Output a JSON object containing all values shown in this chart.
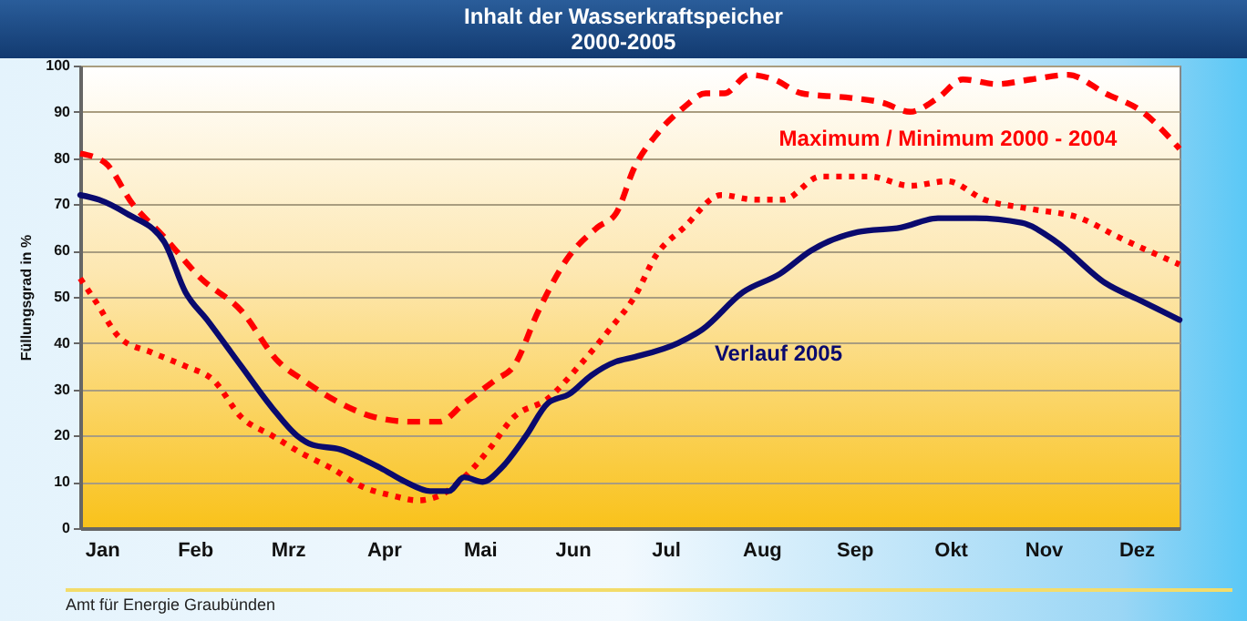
{
  "chart_data": {
    "type": "line",
    "title": "Inhalt der Wasserkraftspeicher",
    "subtitle": "2000-2005",
    "ylabel": "Füllungsgrad in %",
    "xlim": [
      "--01-08",
      "--12-29"
    ],
    "xticks": [
      {
        "value": "--01-15",
        "label": "Jan"
      },
      {
        "value": "--02-14",
        "label": "Feb"
      },
      {
        "value": "--03-16",
        "label": "Mrz"
      },
      {
        "value": "--04-16",
        "label": "Apr"
      },
      {
        "value": "--05-17",
        "label": "Mai"
      },
      {
        "value": "--06-16",
        "label": "Jun"
      },
      {
        "value": "--07-16",
        "label": "Jul"
      },
      {
        "value": "--08-16",
        "label": "Aug"
      },
      {
        "value": "--09-15",
        "label": "Sep"
      },
      {
        "value": "--10-16",
        "label": "Okt"
      },
      {
        "value": "--11-15",
        "label": "Nov"
      },
      {
        "value": "--12-15",
        "label": "Dez"
      }
    ],
    "ylim": [
      0,
      100
    ],
    "yticks": [
      0,
      10,
      20,
      30,
      40,
      50,
      60,
      70,
      80,
      90,
      100
    ],
    "grid": "y",
    "legend": false,
    "marker": "none",
    "series": [
      {
        "color": "#ff0000",
        "line_style": "dashed",
        "x": [
          "--01-08",
          "--01-16",
          "--01-25",
          "--02-04",
          "--02-16",
          "--03-01",
          "--03-13",
          "--03-21",
          "--04-02",
          "--04-13",
          "--04-25",
          "--05-04",
          "--05-12",
          "--05-22",
          "--05-28",
          "--06-05",
          "--06-14",
          "--06-24",
          "--06-30",
          "--07-06",
          "--07-13",
          "--07-22",
          "--07-29",
          "--08-04",
          "--08-12",
          "--08-20",
          "--08-29",
          "--09-14",
          "--09-24",
          "--10-03",
          "--10-12",
          "--10-20",
          "--10-31",
          "--11-11",
          "--11-23",
          "--12-05",
          "--12-17",
          "--12-29"
        ],
        "values": [
          81,
          79,
          70,
          63,
          54,
          47,
          36,
          32,
          27,
          24,
          23,
          23,
          27,
          32,
          35,
          47,
          58,
          65,
          68,
          78,
          85,
          91,
          94,
          94,
          98,
          97,
          94,
          93,
          92,
          90,
          93,
          97,
          96,
          97,
          98,
          94,
          90,
          82
        ]
      },
      {
        "color": "#ff0000",
        "line_style": "dotted",
        "x": [
          "--01-08",
          "--01-13",
          "--01-21",
          "--01-31",
          "--02-11",
          "--02-20",
          "--03-01",
          "--03-11",
          "--03-21",
          "--03-30",
          "--04-09",
          "--04-19",
          "--04-27",
          "--05-04",
          "--05-12",
          "--05-20",
          "--05-28",
          "--06-08",
          "--06-18",
          "--06-28",
          "--07-06",
          "--07-13",
          "--07-22",
          "--08-03",
          "--08-14",
          "--08-23",
          "--09-04",
          "--09-20",
          "--10-03",
          "--10-15",
          "--10-27",
          "--11-11",
          "--11-27",
          "--12-09",
          "--12-29"
        ],
        "values": [
          54,
          49,
          41,
          38,
          35,
          32,
          24,
          20,
          16,
          13,
          9,
          7,
          6,
          7,
          11,
          17,
          24,
          28,
          35,
          43,
          50,
          59,
          65,
          72,
          71,
          71,
          76,
          76,
          74,
          75,
          71,
          69,
          67,
          63,
          57
        ]
      },
      {
        "color": "#0a0a6e",
        "line_style": "solid",
        "x": [
          "--01-08",
          "--01-14",
          "--01-23",
          "--02-04",
          "--02-11",
          "--02-18",
          "--03-01",
          "--03-11",
          "--03-19",
          "--03-24",
          "--04-02",
          "--04-09",
          "--04-15",
          "--04-23",
          "--05-01",
          "--05-07",
          "--05-12",
          "--05-18",
          "--05-24",
          "--06-01",
          "--06-08",
          "--06-15",
          "--06-22",
          "--06-30",
          "--07-06",
          "--07-20",
          "--07-28",
          "--08-10",
          "--08-22",
          "--09-01",
          "--09-16",
          "--09-30",
          "--10-12",
          "--10-24",
          "--11-08",
          "--11-19",
          "--12-05",
          "--12-17",
          "--12-29"
        ],
        "values": [
          72,
          71,
          68,
          62,
          51,
          45,
          35,
          26,
          20,
          18,
          17,
          15,
          13,
          10,
          8,
          8,
          11,
          10,
          13,
          20,
          27,
          29,
          33,
          36,
          37,
          40,
          43,
          51,
          55,
          60,
          64,
          65,
          67,
          67,
          66,
          62,
          53,
          49,
          45
        ]
      }
    ],
    "annotations": [
      "Maximum / Minimum 2000 - 2004",
      "Verlauf 2005",
      "Amt für Energie Graubünden"
    ]
  }
}
